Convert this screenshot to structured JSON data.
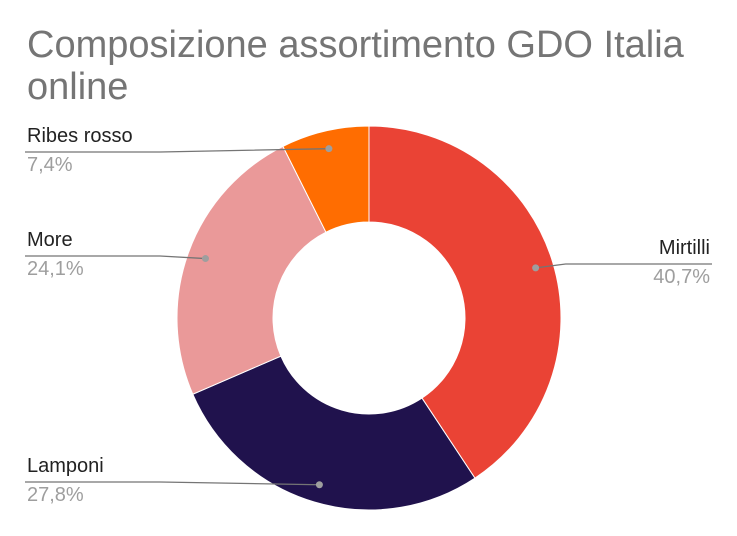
{
  "chart_data": {
    "type": "pie",
    "title": "Composizione assortimento GDO Italia online",
    "donut": true,
    "slices": [
      {
        "label": "Mirtilli",
        "value": 40.7,
        "display": "40,7%",
        "color": "#ea4335",
        "side": "right"
      },
      {
        "label": "Lamponi",
        "value": 27.8,
        "display": "27,8%",
        "color": "#20124d",
        "side": "left"
      },
      {
        "label": "More",
        "value": 24.1,
        "display": "24,1%",
        "color": "#ea9999",
        "side": "left"
      },
      {
        "label": "Ribes rosso",
        "value": 7.4,
        "display": "7,4%",
        "color": "#ff6d01",
        "side": "left"
      }
    ],
    "legend": "none"
  }
}
